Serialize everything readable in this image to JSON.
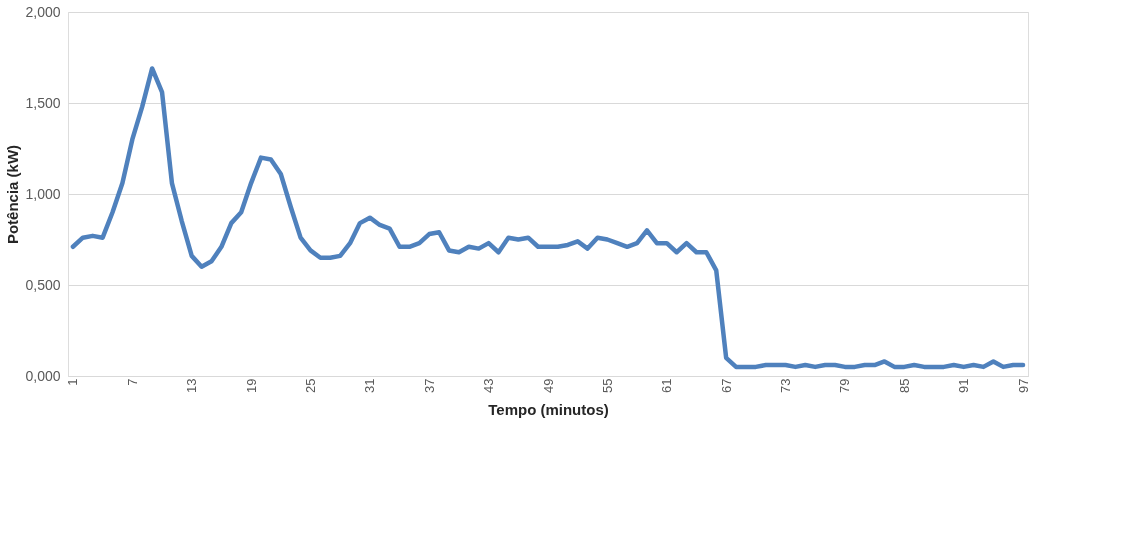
{
  "chart_data": {
    "type": "line",
    "xlabel": "Tempo (minutos)",
    "ylabel": "Potência (kW)",
    "categories": [
      "1",
      null,
      null,
      null,
      null,
      null,
      "7",
      null,
      null,
      null,
      null,
      null,
      "13",
      null,
      null,
      null,
      null,
      null,
      "19",
      null,
      null,
      null,
      null,
      null,
      "25",
      null,
      null,
      null,
      null,
      null,
      "31",
      null,
      null,
      null,
      null,
      null,
      "37",
      null,
      null,
      null,
      null,
      null,
      "43",
      null,
      null,
      null,
      null,
      null,
      "49",
      null,
      null,
      null,
      null,
      null,
      "55",
      null,
      null,
      null,
      null,
      null,
      "61",
      null,
      null,
      null,
      null,
      null,
      "67",
      null,
      null,
      null,
      null,
      null,
      "73",
      null,
      null,
      null,
      null,
      null,
      "79",
      null,
      null,
      null,
      null,
      null,
      "85",
      null,
      null,
      null,
      null,
      null,
      "91",
      null,
      null,
      null,
      null,
      null,
      "97"
    ],
    "series": [
      {
        "color": "#4f81bd",
        "values": [
          0.71,
          0.76,
          0.77,
          0.76,
          0.9,
          1.06,
          1.3,
          1.48,
          1.69,
          1.56,
          1.06,
          0.85,
          0.66,
          0.6,
          0.63,
          0.71,
          0.84,
          0.9,
          1.06,
          1.2,
          1.19,
          1.11,
          0.93,
          0.76,
          0.69,
          0.65,
          0.65,
          0.66,
          0.73,
          0.84,
          0.87,
          0.83,
          0.81,
          0.71,
          0.71,
          0.73,
          0.78,
          0.79,
          0.69,
          0.68,
          0.71,
          0.7,
          0.73,
          0.68,
          0.76,
          0.75,
          0.76,
          0.71,
          0.71,
          0.71,
          0.72,
          0.74,
          0.7,
          0.76,
          0.75,
          0.73,
          0.71,
          0.73,
          0.8,
          0.73,
          0.73,
          0.68,
          0.73,
          0.68,
          0.68,
          0.58,
          0.1,
          0.05,
          0.05,
          0.05,
          0.06,
          0.06,
          0.06,
          0.05,
          0.06,
          0.05,
          0.06,
          0.06,
          0.05,
          0.05,
          0.06,
          0.06,
          0.08,
          0.05,
          0.05,
          0.06,
          0.05,
          0.05,
          0.05,
          0.06,
          0.05,
          0.06,
          0.05,
          0.08,
          0.05,
          0.06,
          0.06
        ]
      }
    ],
    "ylim": [
      0,
      2
    ],
    "yticks": [
      {
        "value": 0,
        "label": "0,000"
      },
      {
        "value": 0.5,
        "label": "0,500"
      },
      {
        "value": 1,
        "label": "1,000"
      },
      {
        "value": 1.5,
        "label": "1,500"
      },
      {
        "value": 2,
        "label": "2,000"
      }
    ],
    "grid": "y",
    "marker": "none",
    "line_style": "solid"
  }
}
